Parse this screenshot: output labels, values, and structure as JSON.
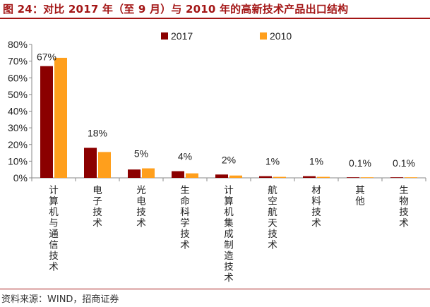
{
  "header": {
    "title": "图 24：对比 2017 年（至 9 月）与 2010 年的高新技术产品出口结构"
  },
  "footer": {
    "source": "资料来源：WIND，招商证券"
  },
  "colors": {
    "series_2017": "#8b0000",
    "series_2010": "#ff9f1c",
    "accent": "#a31515"
  },
  "chart_data": {
    "type": "bar",
    "categories": [
      "计算机与通信技术",
      "电子技术",
      "光电技术",
      "生命科学技术",
      "计算机集成制造技术",
      "航空航天技术",
      "材料技术",
      "其他",
      "生物技术"
    ],
    "series": [
      {
        "name": "2017",
        "values": [
          67,
          18,
          5,
          4,
          2,
          1,
          1,
          0.1,
          0.1
        ]
      },
      {
        "name": "2010",
        "values": [
          72,
          15.5,
          5.7,
          2.7,
          1.4,
          0.6,
          0.6,
          0.05,
          0.05
        ]
      }
    ],
    "data_labels": [
      "67%",
      "18%",
      "5%",
      "4%",
      "2%",
      "1%",
      "1%",
      "0.1%",
      "0.1%"
    ],
    "yticks": [
      "0%",
      "10%",
      "20%",
      "30%",
      "40%",
      "50%",
      "60%",
      "70%",
      "80%"
    ],
    "ylim": [
      0,
      80
    ],
    "legend": {
      "position": "top-center"
    },
    "grid": false
  }
}
